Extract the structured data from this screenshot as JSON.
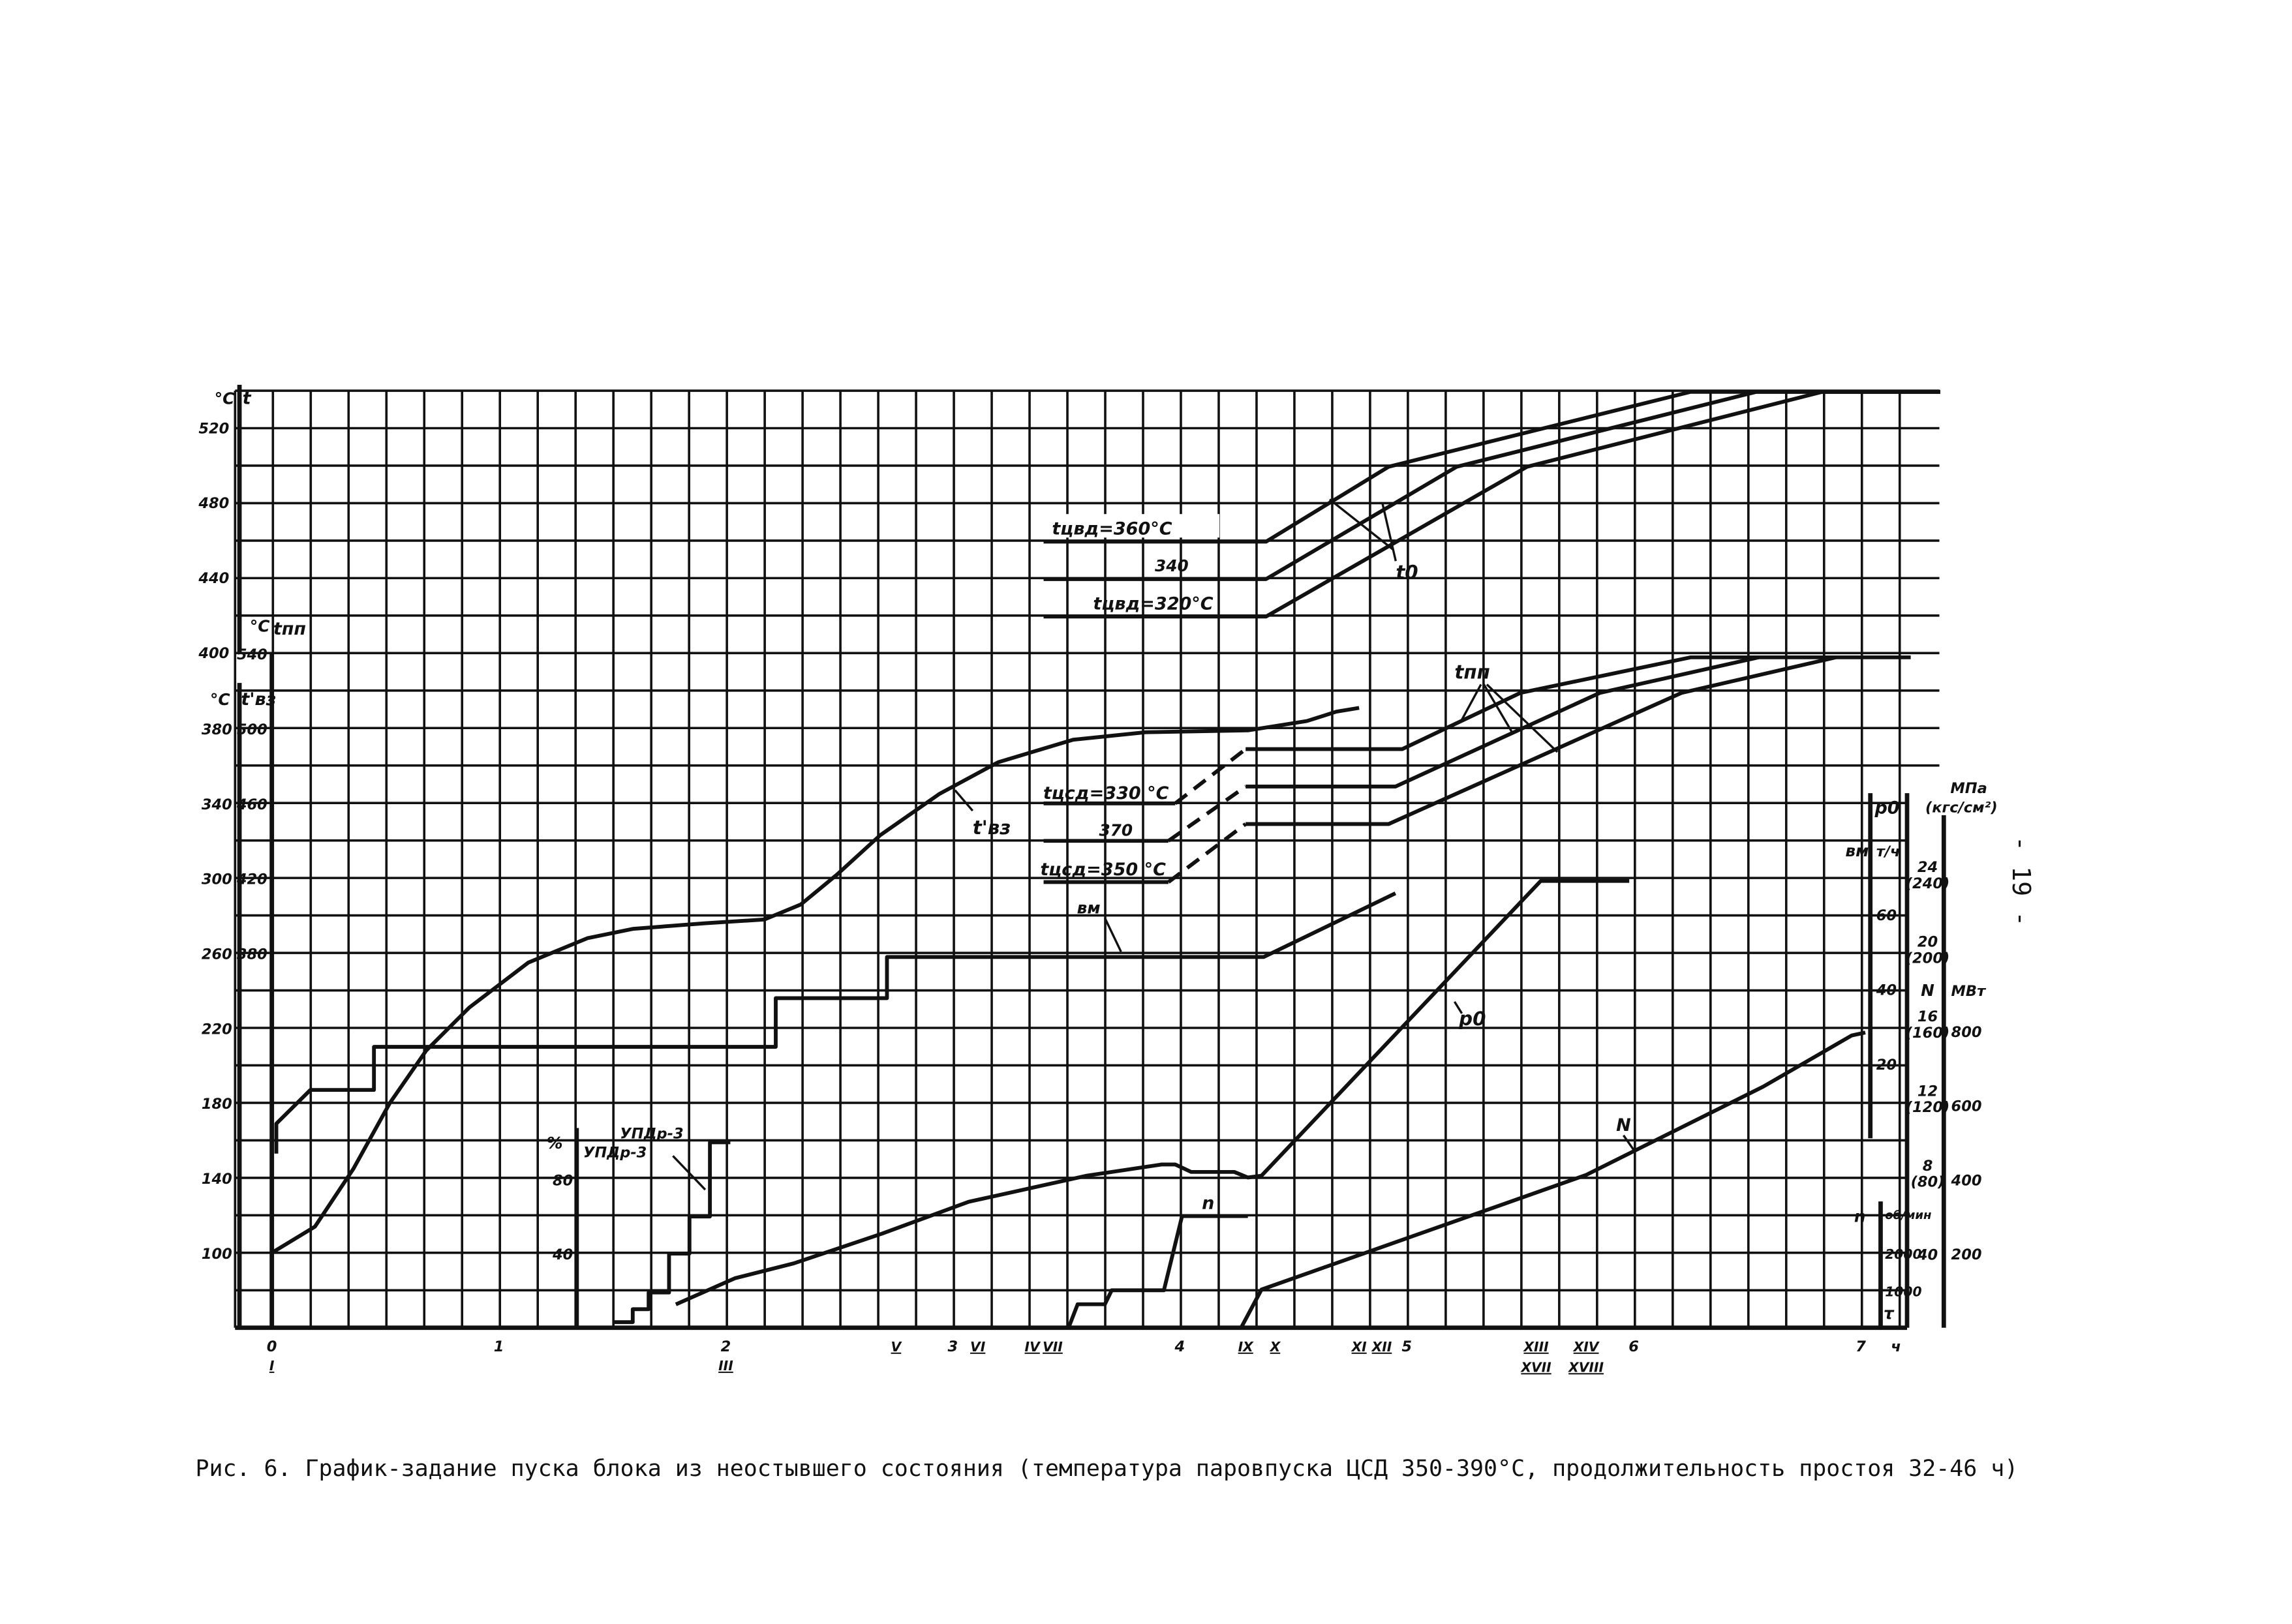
{
  "caption": "Рис. 6. График-задание пуска блока из неостывшего состояния (температура паровпуска ЦСД 350-390°С, продолжительность простоя 32-46 ч)",
  "page_number": "- 19 -",
  "chart_data": {
    "type": "line",
    "title": "",
    "grid": true,
    "x": {
      "unit": "ч",
      "range": [
        0,
        7.2
      ],
      "ticks": [
        {
          "v": 0,
          "t": "0"
        },
        {
          "v": 1,
          "t": "1"
        },
        {
          "v": 2,
          "t": "2"
        },
        {
          "v": 3,
          "t": "3"
        },
        {
          "v": 4,
          "t": "4"
        },
        {
          "v": 5,
          "t": "5"
        },
        {
          "v": 6,
          "t": "6"
        },
        {
          "v": 7,
          "t": "7"
        }
      ],
      "events": [
        {
          "v": 0,
          "t": "I"
        },
        {
          "v": 2,
          "t": "III"
        },
        {
          "v": 2.75,
          "t": "V"
        },
        {
          "v": 3.11,
          "t": "VI"
        },
        {
          "v": 3.35,
          "t": "IV"
        },
        {
          "v": 3.44,
          "t": "VII"
        },
        {
          "v": 4.29,
          "t": "IX"
        },
        {
          "v": 4.42,
          "t": "X"
        },
        {
          "v": 4.79,
          "t": "XI"
        },
        {
          "v": 4.89,
          "t": "XII"
        },
        {
          "v": 5.57,
          "t": "XIII"
        },
        {
          "v": 5.57,
          "t": "XVII",
          "row": 2
        },
        {
          "v": 5.79,
          "t": "XIV"
        },
        {
          "v": 5.79,
          "t": "XVIII",
          "row": 2
        }
      ]
    },
    "axes": {
      "t": {
        "unit": "°C",
        "name": "t",
        "ticks": [
          520,
          480,
          440,
          400
        ]
      },
      "tpp": {
        "unit": "°C",
        "name": "tпп",
        "ticks": [
          540,
          500,
          460,
          420,
          380
        ]
      },
      "tvz": {
        "unit": "°C",
        "name": "t'вз",
        "ticks": [
          380,
          340,
          300,
          260,
          220,
          180,
          140,
          100
        ]
      },
      "pct": {
        "unit": "%",
        "name": "УПДр-3",
        "ticks": [
          80,
          40
        ]
      },
      "vm": {
        "unit": "т/ч",
        "name": "вм",
        "ticks": [
          60,
          40,
          20
        ]
      },
      "mpa": {
        "unit": "МПа",
        "unit2": "(кгс/см²)",
        "name": "p0",
        "ticks": [
          {
            "v": 24,
            "t": "24",
            "t2": "(240)"
          },
          {
            "v": 20,
            "t": "20",
            "t2": "(200)"
          },
          {
            "v": 16,
            "t": "16",
            "t2": "(160)"
          },
          {
            "v": 12,
            "t": "12",
            "t2": "(120)"
          },
          {
            "v": 8,
            "t": "8",
            "t2": "(80)"
          },
          {
            "v": 4,
            "t": "40",
            "t2": ""
          }
        ]
      },
      "mw": {
        "unit": "МВт",
        "name": "N",
        "ticks": [
          800,
          600,
          400,
          200
        ]
      },
      "rpm": {
        "unit": "об/мин",
        "name": "n",
        "ticks": [
          2000,
          1000
        ]
      },
      "time": {
        "name": "τ",
        "unit": "ч"
      }
    },
    "series": [
      {
        "scale": "t",
        "label": "tцвд=360°С",
        "points": [
          [
            3.4,
            459
          ],
          [
            4.38,
            459
          ],
          [
            4.92,
            499
          ],
          [
            6.25,
            539
          ],
          [
            7.35,
            539
          ]
        ]
      },
      {
        "scale": "t",
        "label": "340",
        "points": [
          [
            3.4,
            439
          ],
          [
            4.38,
            439
          ],
          [
            5.22,
            499
          ],
          [
            6.54,
            539
          ],
          [
            7.35,
            539
          ]
        ]
      },
      {
        "scale": "t",
        "label": "tцвд=320°С",
        "points": [
          [
            3.4,
            419
          ],
          [
            4.38,
            419
          ],
          [
            5.53,
            499
          ],
          [
            6.83,
            539
          ],
          [
            7.35,
            539
          ]
        ]
      },
      {
        "scale": "tpp",
        "label": "tцсд=330 °С",
        "dashed_segment": 1,
        "points": [
          [
            3.4,
            460
          ],
          [
            3.98,
            460
          ],
          [
            4.29,
            489
          ],
          [
            4.98,
            489
          ],
          [
            5.5,
            519
          ],
          [
            6.25,
            538
          ],
          [
            7.22,
            538
          ]
        ]
      },
      {
        "scale": "tpp",
        "label": "370",
        "dashed_segment": 1,
        "points": [
          [
            3.4,
            440
          ],
          [
            3.95,
            440
          ],
          [
            4.29,
            469
          ],
          [
            4.95,
            469
          ],
          [
            5.85,
            519
          ],
          [
            6.55,
            538
          ]
        ]
      },
      {
        "scale": "tpp",
        "label": "tцсд=350 °С",
        "dashed_segment": 1,
        "points": [
          [
            3.4,
            418
          ],
          [
            3.95,
            418
          ],
          [
            4.29,
            449
          ],
          [
            4.92,
            449
          ],
          [
            6.21,
            519
          ],
          [
            6.89,
            538
          ]
        ]
      },
      {
        "scale": "tvz",
        "label": "t'вз",
        "smooth": true,
        "points": [
          [
            0,
            100
          ],
          [
            0.19,
            114
          ],
          [
            0.36,
            145
          ],
          [
            0.52,
            180
          ],
          [
            0.68,
            208
          ],
          [
            0.87,
            231
          ],
          [
            1.13,
            255
          ],
          [
            1.39,
            268
          ],
          [
            1.59,
            273
          ],
          [
            1.91,
            276
          ],
          [
            2.17,
            278
          ],
          [
            2.33,
            286
          ],
          [
            2.49,
            302
          ],
          [
            2.68,
            323
          ],
          [
            2.94,
            345
          ],
          [
            3.2,
            362
          ],
          [
            3.53,
            374
          ],
          [
            3.85,
            378
          ],
          [
            4.3,
            379
          ],
          [
            4.56,
            384
          ],
          [
            4.69,
            389
          ],
          [
            4.79,
            391
          ]
        ]
      },
      {
        "scale": "tvz",
        "label": "вм",
        "points": [
          [
            0.02,
            153
          ],
          [
            0.02,
            169
          ],
          [
            0.17,
            187
          ],
          [
            0.45,
            187
          ],
          [
            0.45,
            210
          ],
          [
            2.22,
            210
          ],
          [
            2.22,
            236
          ],
          [
            2.71,
            236
          ],
          [
            2.71,
            258
          ],
          [
            4.37,
            258
          ],
          [
            4.95,
            292
          ]
        ]
      },
      {
        "scale": "mpa",
        "label": "p0",
        "points": [
          [
            1.78,
            1.3
          ],
          [
            2.04,
            2.7
          ],
          [
            2.3,
            3.5
          ],
          [
            2.69,
            5.1
          ],
          [
            3.07,
            6.8
          ],
          [
            3.59,
            8.2
          ],
          [
            3.92,
            8.8
          ],
          [
            3.98,
            8.8
          ],
          [
            4.05,
            8.4
          ],
          [
            4.24,
            8.4
          ],
          [
            4.3,
            8.1
          ],
          [
            4.36,
            8.2
          ],
          [
            5.59,
            24
          ],
          [
            5.98,
            24
          ]
        ]
      },
      {
        "scale": "mw",
        "label": "N",
        "points": [
          [
            4.27,
            0
          ],
          [
            4.36,
            103
          ],
          [
            5.79,
            412
          ],
          [
            6.57,
            650
          ],
          [
            6.96,
            788
          ],
          [
            7.02,
            796
          ]
        ]
      },
      {
        "scale": "rpm",
        "label": "n",
        "points": [
          [
            3.51,
            0
          ],
          [
            3.55,
            627
          ],
          [
            3.67,
            627
          ],
          [
            3.7,
            1000
          ],
          [
            3.93,
            1000
          ],
          [
            4.01,
            2980
          ],
          [
            4.3,
            2980
          ]
        ]
      },
      {
        "scale": "pct",
        "label": "УПДр-3",
        "points": [
          [
            1.51,
            3
          ],
          [
            1.59,
            3
          ],
          [
            1.59,
            10
          ],
          [
            1.66,
            10
          ],
          [
            1.66,
            19
          ],
          [
            1.75,
            19
          ],
          [
            1.75,
            40
          ],
          [
            1.84,
            40
          ],
          [
            1.84,
            60
          ],
          [
            1.93,
            60
          ],
          [
            1.93,
            100
          ],
          [
            2.02,
            100
          ]
        ]
      }
    ],
    "annotations": {
      "to": "t0",
      "tpp": "tпп",
      "tvz": "t'вз",
      "vm": "вм",
      "p0": "p0",
      "N": "N",
      "n": "n",
      "up1": "УПДр-3",
      "up2": "УПДр-3",
      "tcvd360": "tцвд=360°С",
      "tcvd340": "340",
      "tcvd320": "tцвд=320°С",
      "tcsd330": "tцсд=330 °С",
      "tcsd370": "370",
      "tcsd350": "tцсд=350 °С"
    }
  }
}
